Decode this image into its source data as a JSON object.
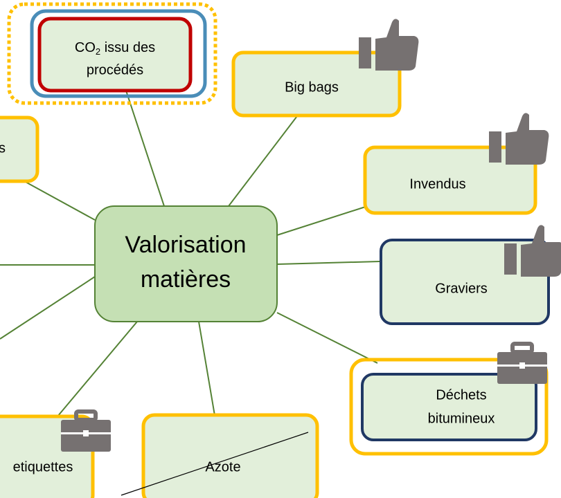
{
  "center": {
    "lines": [
      "Valorisation",
      "matières"
    ]
  },
  "nodes": [
    {
      "id": "co2",
      "formula": "CO",
      "subscript": "2",
      "line1_rest": " issu des",
      "line2": "procédés"
    },
    {
      "id": "bigbags",
      "lines": [
        "Big bags"
      ]
    },
    {
      "id": "left",
      "lines": [
        "s"
      ]
    },
    {
      "id": "invendus",
      "lines": [
        "Invendus"
      ]
    },
    {
      "id": "graviers",
      "lines": [
        "Graviers"
      ]
    },
    {
      "id": "dechets",
      "lines": [
        "Déchets",
        "bitumineux"
      ]
    },
    {
      "id": "etiquettes",
      "lines": [
        "etiquettes"
      ]
    },
    {
      "id": "azote",
      "lines": [
        "Azote"
      ]
    }
  ]
}
